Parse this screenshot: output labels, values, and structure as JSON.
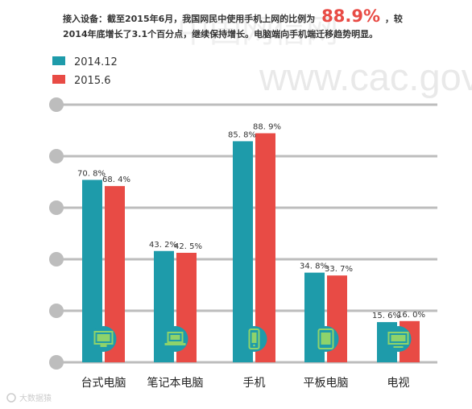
{
  "header": {
    "text_before": "接入设备：截至2015年6月，我国网民中使用手机上网的比例为",
    "highlight": "88.9%",
    "text_after_line1": "，较",
    "line2": "2014年底增长了3.1个百分点，继续保持增长。电脑端向手机端迁移趋势明显。"
  },
  "watermark": {
    "site": "www.cac.gov.cn",
    "cn": "中国网信网"
  },
  "footer": {
    "logo_text": "大数据猿"
  },
  "colors": {
    "series_2014": "#1E9BAA",
    "series_2015": "#E84B45",
    "grid": "#BDBDBD",
    "icon_bg": "#1E9BAA",
    "icon_fg": "#8ED36B"
  },
  "icons": [
    "desktop-monitor-icon",
    "laptop-icon",
    "mobile-phone-icon",
    "tablet-icon",
    "tv-icon"
  ],
  "chart_data": {
    "type": "bar",
    "categories": [
      "台式电脑",
      "笔记本电脑",
      "手机",
      "平板电脑",
      "电视"
    ],
    "series": [
      {
        "name": "2014.12",
        "values": [
          70.8,
          43.2,
          85.8,
          34.8,
          15.6
        ],
        "labels": [
          "70. 8%",
          "43. 2%",
          "85. 8%",
          "34. 8%",
          "15. 6%"
        ]
      },
      {
        "name": "2015.6",
        "values": [
          68.4,
          42.5,
          88.9,
          33.7,
          16.0
        ],
        "labels": [
          "68. 4%",
          "42. 5%",
          "88. 9%",
          "33. 7%",
          "16. 0%"
        ]
      }
    ],
    "ylim": [
      0,
      100
    ],
    "legend": "top-left",
    "grid": true
  }
}
